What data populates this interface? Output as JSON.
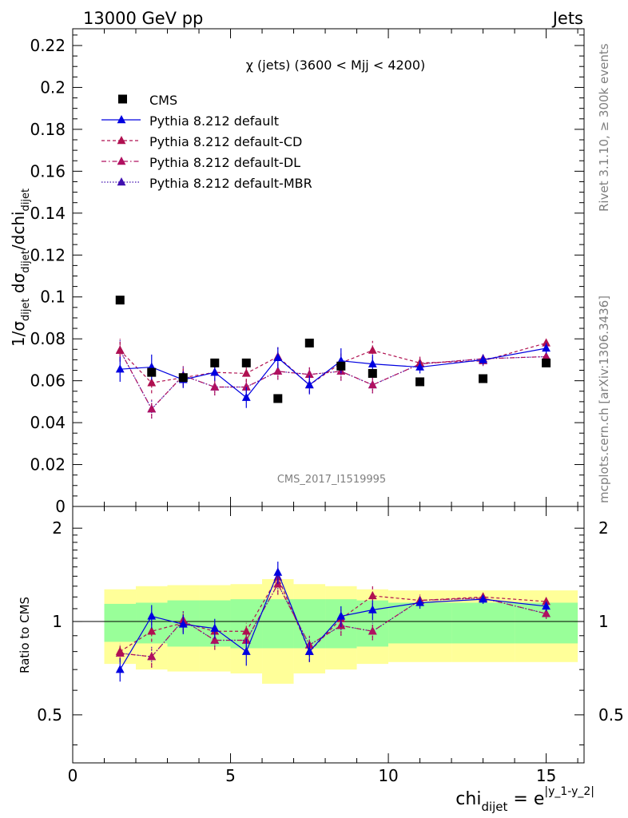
{
  "header": {
    "left": "13000 GeV pp",
    "right": "Jets"
  },
  "side_labels": {
    "rivet": "Rivet 3.1.10, ≥ 300k events",
    "mcplots": "mcplots.cern.ch [arXiv:1306.3436]"
  },
  "chart_data": {
    "type": "scatter",
    "title": "χ (jets) (3600 < Mjj < 4200)",
    "watermark": "CMS_2017_I1519995",
    "ylabel_main": "1/σdijet dσdijet/dchidijet",
    "ylabel_ratio": "Ratio to CMS",
    "xlabel": "chidijet = e|y_1-y_2|",
    "xlim": [
      0,
      16.2
    ],
    "ylim_main": [
      0,
      0.228
    ],
    "ylim_ratio": [
      0.35,
      2.35
    ],
    "ratio_scale": "log",
    "x_ticks": [
      0,
      5,
      10,
      15
    ],
    "y_ticks_main": [
      0,
      0.02,
      0.04,
      0.06,
      0.08,
      0.1,
      0.12,
      0.14,
      0.16,
      0.18,
      0.2,
      0.22
    ],
    "y_tick_labels_main": [
      "0",
      "0.02",
      "0.04",
      "0.06",
      "0.08",
      "0.1",
      "0.12",
      "0.14",
      "0.16",
      "0.18",
      "0.2",
      "0.22"
    ],
    "y_ticks_ratio": [
      0.5,
      1,
      2
    ],
    "y_tick_labels_ratio": [
      "0.5",
      "1",
      "2"
    ],
    "legend_position": "top-left",
    "data": {
      "name": "CMS",
      "x": [
        1.5,
        2.5,
        3.5,
        4.5,
        5.5,
        6.5,
        7.5,
        8.5,
        9.5,
        11,
        13,
        15
      ],
      "y": [
        0.0985,
        0.064,
        0.0615,
        0.0685,
        0.0685,
        0.0515,
        0.078,
        0.067,
        0.0635,
        0.0595,
        0.061,
        0.0685
      ]
    },
    "bins": [
      [
        1,
        2
      ],
      [
        2,
        3
      ],
      [
        3,
        4
      ],
      [
        4,
        5
      ],
      [
        5,
        6
      ],
      [
        6,
        7
      ],
      [
        7,
        8
      ],
      [
        8,
        9
      ],
      [
        9,
        10
      ],
      [
        10,
        12
      ],
      [
        12,
        14
      ],
      [
        14,
        16
      ]
    ],
    "band_inner": [
      0.14,
      0.15,
      0.17,
      0.17,
      0.18,
      0.18,
      0.18,
      0.18,
      0.17,
      0.15,
      0.15,
      0.15
    ],
    "band_outer": [
      0.27,
      0.3,
      0.31,
      0.31,
      0.32,
      0.37,
      0.32,
      0.3,
      0.27,
      0.26,
      0.26,
      0.26
    ],
    "series": [
      {
        "name": "Pythia 8.212 default",
        "color": "#0000e0",
        "dash": "solid",
        "y": [
          0.0655,
          0.0665,
          0.0605,
          0.064,
          0.052,
          0.071,
          0.058,
          0.0695,
          0.068,
          0.0665,
          0.07,
          0.0755
        ],
        "err": [
          0.006,
          0.006,
          0.004,
          0.004,
          0.005,
          0.005,
          0.0045,
          0.006,
          0.0045,
          0.003,
          0.0025,
          0.0025
        ],
        "ratio": [
          0.7,
          1.04,
          0.98,
          0.95,
          0.8,
          1.44,
          0.8,
          1.04,
          1.09,
          1.15,
          1.18,
          1.12
        ],
        "ratio_err": [
          0.06,
          0.09,
          0.07,
          0.07,
          0.08,
          0.12,
          0.06,
          0.08,
          0.08,
          0.05,
          0.04,
          0.04
        ]
      },
      {
        "name": "Pythia 8.212 default-CD",
        "color": "#b01050",
        "dash": "dashed",
        "y": [
          0.0745,
          0.059,
          0.0615,
          0.064,
          0.0635,
          0.0715,
          0.058,
          0.0685,
          0.0745,
          0.0685,
          0.0695,
          0.078
        ],
        "err": [
          0.0055,
          0.005,
          0.0045,
          0.004,
          0.004,
          0.0045,
          0.004,
          0.005,
          0.0045,
          0.003,
          0.0025,
          0.0025
        ],
        "ratio": [
          0.8,
          0.93,
          0.99,
          0.93,
          0.93,
          1.39,
          0.8,
          1.02,
          1.21,
          1.17,
          1.2,
          1.16
        ],
        "ratio_err": [
          0.05,
          0.07,
          0.07,
          0.06,
          0.06,
          0.1,
          0.06,
          0.07,
          0.09,
          0.05,
          0.04,
          0.04
        ]
      },
      {
        "name": "Pythia 8.212 default-DL",
        "color": "#b01060",
        "dash": "dashdot",
        "y": [
          0.0745,
          0.0465,
          0.0625,
          0.057,
          0.057,
          0.0645,
          0.063,
          0.0645,
          0.058,
          0.068,
          0.0705,
          0.0715
        ],
        "err": [
          0.005,
          0.0045,
          0.0045,
          0.004,
          0.004,
          0.004,
          0.004,
          0.0045,
          0.004,
          0.003,
          0.0025,
          0.0025
        ],
        "ratio": [
          0.79,
          0.77,
          1.01,
          0.87,
          0.87,
          1.32,
          0.84,
          0.97,
          0.93,
          1.17,
          1.19,
          1.06
        ],
        "ratio_err": [
          0.05,
          0.06,
          0.07,
          0.06,
          0.06,
          0.1,
          0.06,
          0.07,
          0.06,
          0.05,
          0.04,
          0.04
        ]
      },
      {
        "name": "Pythia 8.212 default-MBR",
        "color": "#4010b0",
        "dash": "dotted",
        "y": [
          0.0745,
          0.0465,
          0.0625,
          0.057,
          0.057,
          0.0645,
          0.063,
          0.0645,
          0.058,
          0.068,
          0.0705,
          0.0715
        ],
        "err": [
          0.005,
          0.0045,
          0.0045,
          0.004,
          0.004,
          0.004,
          0.004,
          0.0045,
          0.004,
          0.003,
          0.0025,
          0.0025
        ],
        "ratio": [
          0.79,
          0.77,
          1.01,
          0.87,
          0.87,
          1.32,
          0.84,
          0.97,
          0.93,
          1.17,
          1.19,
          1.06
        ],
        "ratio_err": [
          0.05,
          0.06,
          0.07,
          0.06,
          0.06,
          0.1,
          0.06,
          0.07,
          0.06,
          0.05,
          0.04,
          0.04
        ]
      }
    ]
  }
}
